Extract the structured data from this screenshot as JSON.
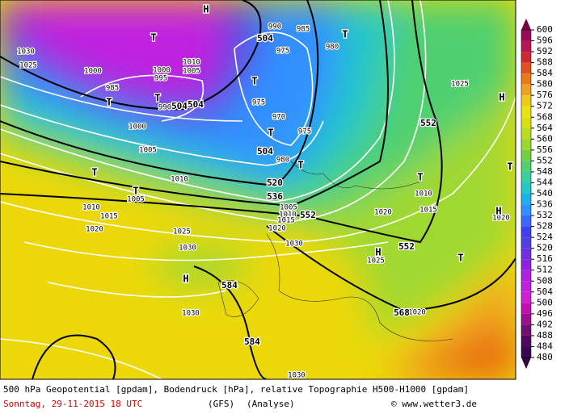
{
  "colorbar": {
    "ticks": [
      600,
      596,
      592,
      588,
      584,
      580,
      576,
      572,
      568,
      564,
      560,
      556,
      552,
      548,
      544,
      540,
      536,
      532,
      528,
      524,
      520,
      516,
      512,
      508,
      504,
      500,
      496,
      492,
      488,
      484,
      480
    ]
  },
  "map": {
    "markers": [
      "H",
      "T",
      "T",
      "T",
      "T",
      "T",
      "T",
      "T",
      "T",
      "T",
      "T",
      "T",
      "T",
      "H",
      "H",
      "H",
      "H"
    ],
    "geopotential_labels": [
      "504",
      "504",
      "504",
      "504",
      "520",
      "536",
      "552",
      "552",
      "552",
      "568",
      "584",
      "584"
    ],
    "pressure_labels": [
      "990",
      "985",
      "975",
      "980",
      "1030",
      "1025",
      "1000",
      "1010",
      "1005",
      "1000",
      "995",
      "985",
      "990",
      "975",
      "970",
      "975",
      "980",
      "1000",
      "1005",
      "1010",
      "1005",
      "1010",
      "1015",
      "1020",
      "1025",
      "1030",
      "1010",
      "1015",
      "1020",
      "1025",
      "1020",
      "1005",
      "1010",
      "1015",
      "1020",
      "1030",
      "1025",
      "1030",
      "1020",
      "1030"
    ]
  },
  "footer": {
    "description": "500 hPa Geopotential [gpdam], Bodendruck [hPa], relative Topographie H500-H1000 [gpdam]",
    "date": "Sonntag, 29-11-2015  18 UTC",
    "model": "(GFS)",
    "run": "(Analyse)",
    "credit": "© www.wetter3.de"
  }
}
